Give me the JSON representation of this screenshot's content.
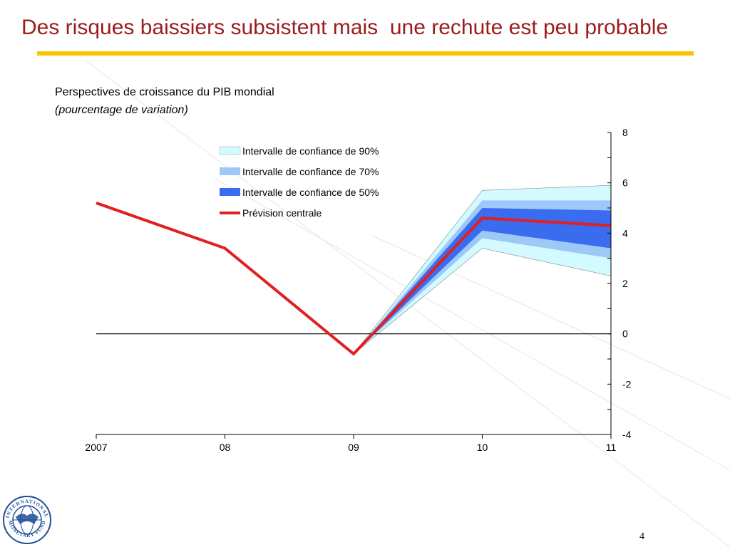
{
  "slide": {
    "title": "Des risques baissiers subsistent mais  une rechute est peu probable",
    "page_number": "4"
  },
  "logo": {
    "text_top": "INTERNATIONAL",
    "text_bottom": "MONETARY FUND",
    "color": "#1f4e9a"
  },
  "colors": {
    "title": "#9b1c1c",
    "rule": "#f7c600",
    "ci90": "#d3fbff",
    "ci70": "#9ec8f7",
    "ci50": "#3a6cf0",
    "central": "#e02020"
  },
  "chart_data": {
    "type": "line",
    "title": "Perspectives de croissance du PIB mondial",
    "subtitle": "(pourcentage de variation)",
    "x_categories": [
      "2007",
      "08",
      "09",
      "10",
      "11"
    ],
    "ylim": [
      -4,
      8
    ],
    "y_ticks": [
      -4,
      -2,
      0,
      2,
      4,
      6,
      8
    ],
    "y_axis_position": "right",
    "legend_position": "top-center",
    "series": [
      {
        "name": "Prévision centrale",
        "x": [
          "2007",
          "08",
          "09",
          "10",
          "11"
        ],
        "values": [
          5.2,
          3.4,
          -0.8,
          4.6,
          4.3
        ]
      }
    ],
    "confidence_bands": [
      {
        "name": "Intervalle de confiance de 90%",
        "x": [
          "09",
          "10",
          "11"
        ],
        "upper": [
          -0.8,
          5.7,
          5.9
        ],
        "lower": [
          -0.8,
          3.4,
          2.3
        ]
      },
      {
        "name": "Intervalle de confiance de 70%",
        "x": [
          "09",
          "10",
          "11"
        ],
        "upper": [
          -0.8,
          5.3,
          5.3
        ],
        "lower": [
          -0.8,
          3.8,
          3.0
        ]
      },
      {
        "name": "Intervalle de confiance de 50%",
        "x": [
          "09",
          "10",
          "11"
        ],
        "upper": [
          -0.8,
          5.0,
          4.9
        ],
        "lower": [
          -0.8,
          4.1,
          3.4
        ]
      }
    ]
  }
}
